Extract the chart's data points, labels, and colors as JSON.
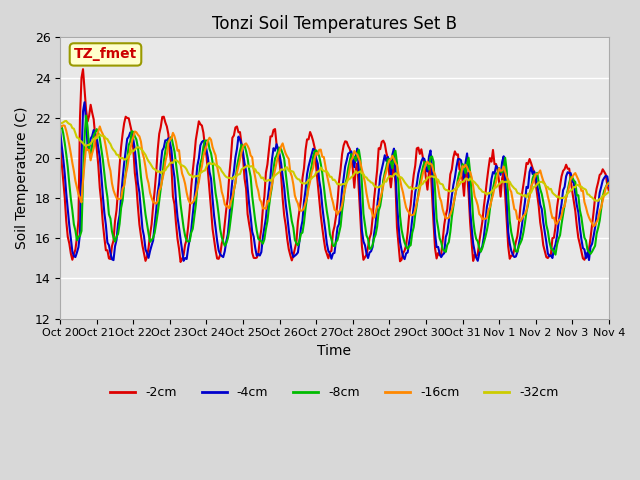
{
  "title": "Tonzi Soil Temperatures Set B",
  "xlabel": "Time",
  "ylabel": "Soil Temperature (C)",
  "ylim": [
    12,
    26
  ],
  "yticks": [
    12,
    14,
    16,
    18,
    20,
    22,
    24,
    26
  ],
  "annotation_text": "TZ_fmet",
  "annotation_color": "#cc0000",
  "annotation_bg": "#ffffcc",
  "annotation_border": "#999900",
  "series_colors": {
    "-2cm": "#dd0000",
    "-4cm": "#0000cc",
    "-8cm": "#00bb00",
    "-16cm": "#ff8800",
    "-32cm": "#cccc00"
  },
  "series_linewidth": 1.5,
  "n_points": 361,
  "x_tick_labels": [
    "Oct 20",
    "Oct 21",
    "Oct 22",
    "Oct 23",
    "Oct 24",
    "Oct 25",
    "Oct 26",
    "Oct 27",
    "Oct 28",
    "Oct 29",
    "Oct 30",
    "Oct 31",
    "Nov 1",
    "Nov 2",
    "Nov 3",
    "Nov 4"
  ],
  "x_tick_positions": [
    0,
    24,
    48,
    72,
    96,
    120,
    144,
    168,
    192,
    216,
    240,
    264,
    288,
    312,
    336,
    360
  ]
}
